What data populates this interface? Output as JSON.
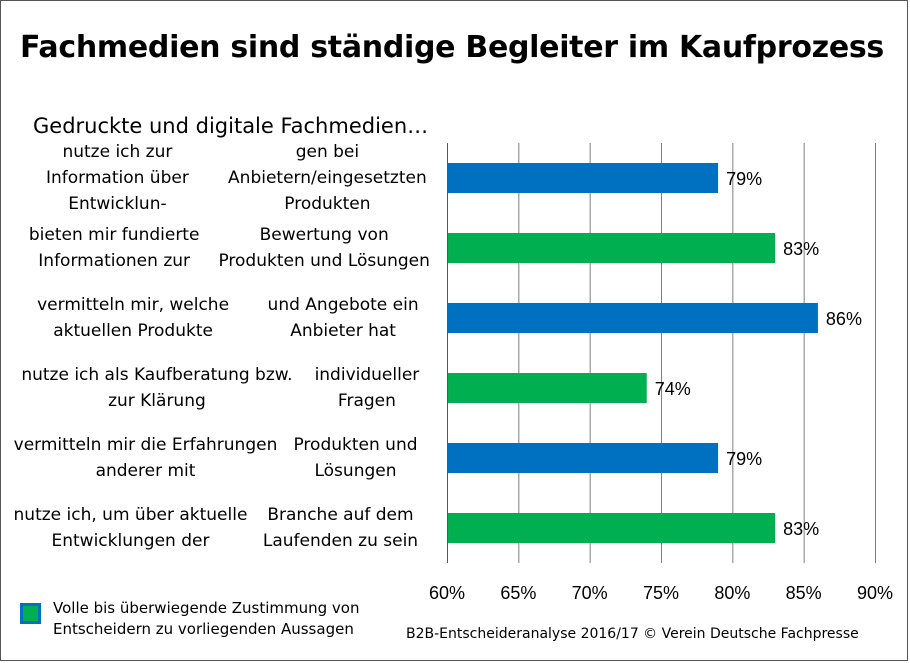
{
  "chart_data": {
    "type": "bar",
    "orientation": "horizontal",
    "title": "Fachmedien sind ständige Begleiter im Kaufprozess",
    "subtitle": "Gedruckte  und digitale Fachmedien…",
    "categories": [
      [
        "nutze ich zur Information über Entwicklun-",
        "gen bei Anbietern/eingesetzten Produkten"
      ],
      [
        "bieten mir fundierte Informationen zur",
        "Bewertung von Produkten und Lösungen"
      ],
      [
        "vermitteln mir, welche aktuellen Produkte",
        "und Angebote ein Anbieter hat"
      ],
      [
        "nutze ich als Kaufberatung bzw. zur Klärung",
        "individueller Fragen"
      ],
      [
        "vermitteln mir die Erfahrungen anderer mit",
        "Produkten und Lösungen"
      ],
      [
        "nutze ich, um über aktuelle Entwicklungen der",
        "Branche auf dem Laufenden zu sein"
      ]
    ],
    "values": [
      79,
      83,
      86,
      74,
      79,
      83
    ],
    "value_labels": [
      "79%",
      "83%",
      "86%",
      "74%",
      "79%",
      "83%"
    ],
    "bar_colors": [
      "#0070c0",
      "#00b050",
      "#0070c0",
      "#00b050",
      "#0070c0",
      "#00b050"
    ],
    "xlim": [
      60,
      90
    ],
    "xticks": [
      60,
      65,
      70,
      75,
      80,
      85,
      90
    ],
    "xtick_labels": [
      "60%",
      "65%",
      "70%",
      "75%",
      "80%",
      "85%",
      "90%"
    ],
    "grid": "vertical",
    "legend": {
      "position": "bottom-left",
      "lines": [
        "Volle bis überwiegende Zustimmung von",
        "Entscheidern zu vorliegenden Aussagen"
      ]
    }
  },
  "footer": {
    "source": "B2B-Entscheideranalyse 2016/17 © Verein Deutsche Fachpresse"
  },
  "colors": {
    "blue": "#0070c0",
    "green": "#00b050",
    "grid": "#7f7f7f"
  }
}
